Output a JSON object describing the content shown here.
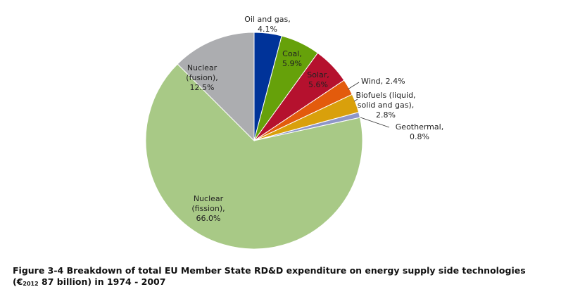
{
  "chart_data": {
    "type": "pie",
    "title": "",
    "slices": [
      {
        "label": "Oil and gas",
        "value": 4.1,
        "display": "4.1%",
        "color": "#003399"
      },
      {
        "label": "Coal",
        "value": 5.9,
        "display": "5.9%",
        "color": "#66a10a"
      },
      {
        "label": "Solar",
        "value": 5.6,
        "display": "5.6%",
        "color": "#b5112e"
      },
      {
        "label": "Wind",
        "value": 2.4,
        "display": "2.4%",
        "color": "#e35b0c"
      },
      {
        "label": "Biofuels (liquid, solid and gas)",
        "value": 2.8,
        "display": "2.8%",
        "color": "#d9a00b"
      },
      {
        "label": "Geothermal",
        "value": 0.8,
        "display": "0.8%",
        "color": "#8e96c8"
      },
      {
        "label": "Nuclear (fission)",
        "value": 66.0,
        "display": "66.0%",
        "color": "#a8c986"
      },
      {
        "label": "Nuclear (fusion)",
        "value": 12.5,
        "display": "12.5%",
        "color": "#acadb0"
      }
    ],
    "labels": {
      "oil_gas_l1": "Oil and gas,",
      "oil_gas_l2": "4.1%",
      "coal_l1": "Coal,",
      "coal_l2": "5.9%",
      "solar_l1": "Solar,",
      "solar_l2": "5.6%",
      "wind_l1": "Wind, 2.4%",
      "biofuels_l1": "Biofuels (liquid,",
      "biofuels_l2": "solid and gas),",
      "biofuels_l3": "2.8%",
      "geothermal_l1": "Geothermal,",
      "geothermal_l2": "0.8%",
      "fission_l1": "Nuclear",
      "fission_l2": "(fission),",
      "fission_l3": "66.0%",
      "fusion_l1": "Nuclear",
      "fusion_l2": "(fusion),",
      "fusion_l3": "12.5%"
    }
  },
  "caption": {
    "line1": "Figure 3-4 Breakdown of total EU Member State RD&D expenditure on energy supply side technologies",
    "line2_prefix": "(€",
    "line2_sub": "2012",
    "line2_suffix": " 87 billion) in 1974 - 2007"
  }
}
